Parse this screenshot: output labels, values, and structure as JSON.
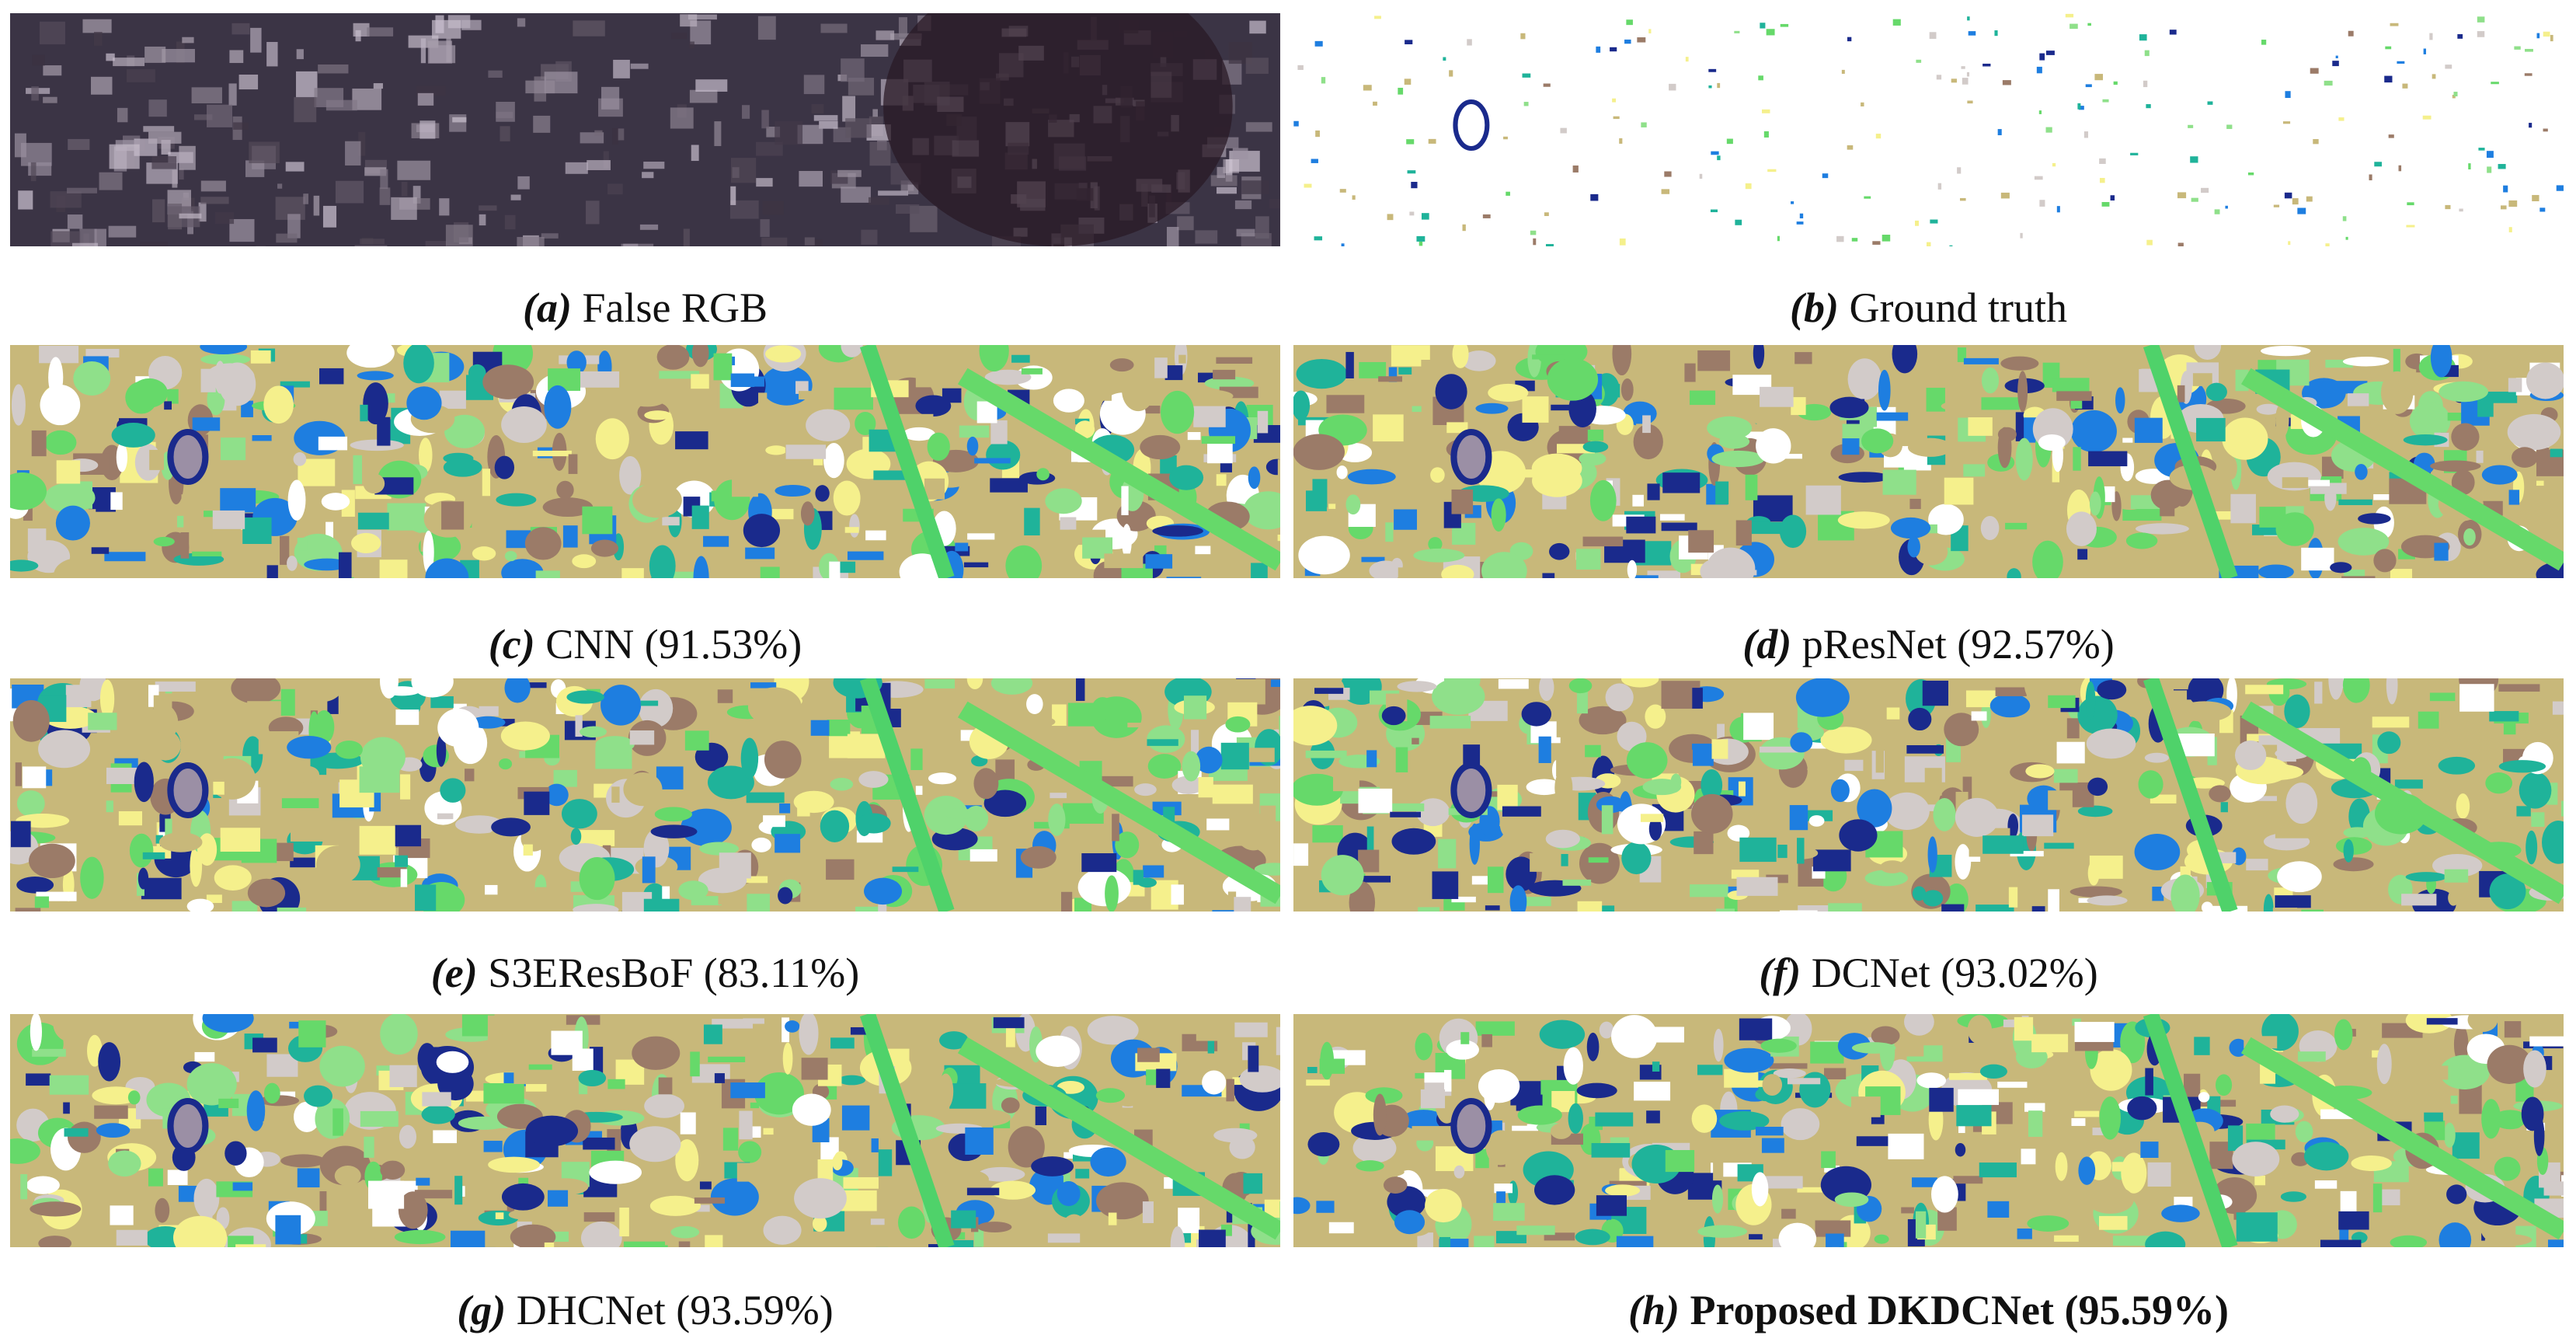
{
  "panels": [
    {
      "label": "(a)",
      "caption": "False RGB"
    },
    {
      "label": "(b)",
      "caption": "Ground truth"
    },
    {
      "label": "(c)",
      "caption": "CNN (91.53%)"
    },
    {
      "label": "(d)",
      "caption": "pResNet (92.57%)"
    },
    {
      "label": "(e)",
      "caption": "S3EResBoF (83.11%)"
    },
    {
      "label": "(f)",
      "caption": "DCNet (93.02%)"
    },
    {
      "label": "(g)",
      "caption": "DHCNet (93.59%)"
    },
    {
      "label": "(h)",
      "caption": "Proposed DKDCNet (95.59%)",
      "bold": true
    }
  ]
}
